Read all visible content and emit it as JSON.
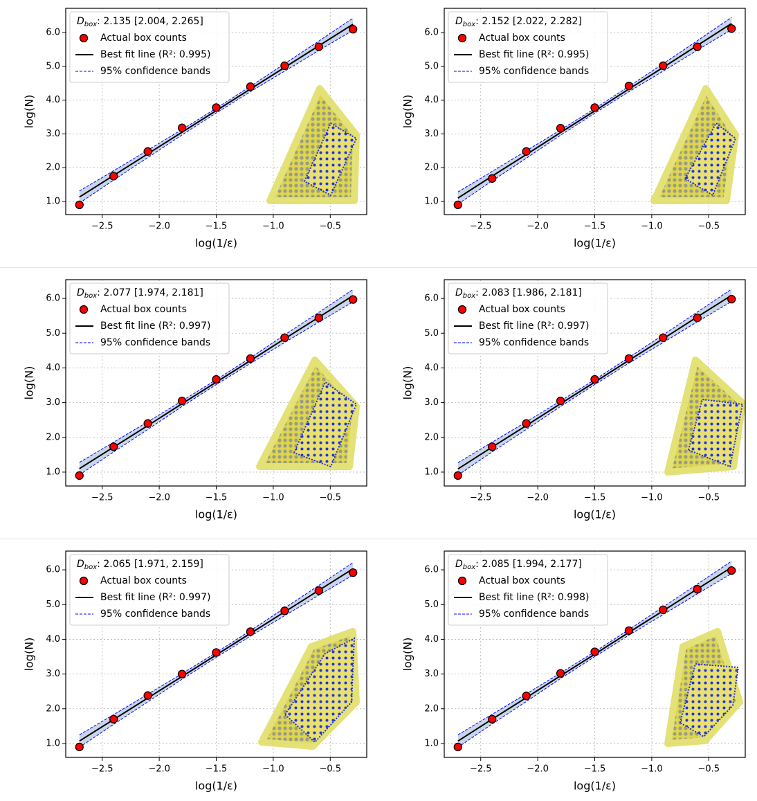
{
  "chart_data": [
    {
      "type": "scatter",
      "x": [
        -2.7,
        -2.4,
        -2.1,
        -1.8,
        -1.5,
        -1.2,
        -0.9,
        -0.6,
        -0.3
      ],
      "annotation": {
        "symbol": "D",
        "subscript": "box",
        "text": ": 2.135 [2.004, 2.265]"
      },
      "series": [
        {
          "name": "Actual box counts",
          "color": "#ff0000",
          "values": [
            0.9,
            1.75,
            2.48,
            3.18,
            3.78,
            4.4,
            5.02,
            5.58,
            6.1
          ]
        },
        {
          "name": "Best fit line (R²: 0.995)",
          "color": "#000000",
          "values": [
            1.13,
            1.77,
            2.41,
            3.05,
            3.69,
            4.33,
            4.97,
            5.61,
            6.25
          ]
        },
        {
          "name": "95% confidence bands",
          "color": "#0000ff",
          "upper": [
            1.31,
            1.91,
            2.52,
            3.13,
            3.76,
            4.41,
            5.08,
            5.75,
            6.43
          ],
          "lower": [
            0.95,
            1.63,
            2.3,
            2.97,
            3.62,
            4.25,
            4.86,
            5.47,
            6.07
          ]
        }
      ],
      "xlabel": "log(1/ε)",
      "ylabel": "log(N)",
      "xlim": [
        -2.82,
        -0.18
      ],
      "ylim": [
        0.61,
        6.72
      ],
      "xticks": [
        {
          "value": -2.5,
          "label": "−2.5"
        },
        {
          "value": -2.0,
          "label": "−2.0"
        },
        {
          "value": -1.5,
          "label": "−1.5"
        },
        {
          "value": -1.0,
          "label": "−1.0"
        },
        {
          "value": -0.5,
          "label": "−0.5"
        }
      ],
      "yticks": [
        {
          "value": 1,
          "label": "1.0"
        },
        {
          "value": 2,
          "label": "2.0"
        },
        {
          "value": 3,
          "label": "3.0"
        },
        {
          "value": 4,
          "label": "4.0"
        },
        {
          "value": 5,
          "label": "5.0"
        },
        {
          "value": 6,
          "label": "6.0"
        }
      ],
      "grid": true,
      "legend": "upper left"
    },
    {
      "type": "scatter",
      "x": [
        -2.7,
        -2.4,
        -2.1,
        -1.8,
        -1.5,
        -1.2,
        -0.9,
        -0.6,
        -0.3
      ],
      "annotation": {
        "symbol": "D",
        "subscript": "box",
        "text": ": 2.152 [2.022, 2.282]"
      },
      "series": [
        {
          "name": "Actual box counts",
          "color": "#ff0000",
          "values": [
            0.9,
            1.68,
            2.48,
            3.17,
            3.78,
            4.42,
            5.02,
            5.58,
            6.12
          ]
        },
        {
          "name": "Best fit line (R²: 0.995)",
          "color": "#000000",
          "values": [
            1.1,
            1.75,
            2.39,
            3.04,
            3.68,
            4.33,
            4.97,
            5.62,
            6.27
          ]
        },
        {
          "name": "95% confidence bands",
          "color": "#0000ff",
          "upper": [
            1.28,
            1.89,
            2.5,
            3.12,
            3.75,
            4.41,
            5.08,
            5.76,
            6.45
          ],
          "lower": [
            0.92,
            1.61,
            2.28,
            2.96,
            3.61,
            4.25,
            4.86,
            5.48,
            6.09
          ]
        }
      ],
      "xlabel": "log(1/ε)",
      "ylabel": "log(N)",
      "xlim": [
        -2.82,
        -0.18
      ],
      "ylim": [
        0.61,
        6.72
      ],
      "xticks": [
        {
          "value": -2.5,
          "label": "−2.5"
        },
        {
          "value": -2.0,
          "label": "−2.0"
        },
        {
          "value": -1.5,
          "label": "−1.5"
        },
        {
          "value": -1.0,
          "label": "−1.0"
        },
        {
          "value": -0.5,
          "label": "−0.5"
        }
      ],
      "yticks": [
        {
          "value": 1,
          "label": "1.0"
        },
        {
          "value": 2,
          "label": "2.0"
        },
        {
          "value": 3,
          "label": "3.0"
        },
        {
          "value": 4,
          "label": "4.0"
        },
        {
          "value": 5,
          "label": "5.0"
        },
        {
          "value": 6,
          "label": "6.0"
        }
      ],
      "grid": true,
      "legend": "upper left"
    },
    {
      "type": "scatter",
      "x": [
        -2.7,
        -2.4,
        -2.1,
        -1.8,
        -1.5,
        -1.2,
        -0.9,
        -0.6,
        -0.3
      ],
      "annotation": {
        "symbol": "D",
        "subscript": "box",
        "text": ": 2.077 [1.974, 2.181]"
      },
      "series": [
        {
          "name": "Actual box counts",
          "color": "#ff0000",
          "values": [
            0.9,
            1.73,
            2.4,
            3.05,
            3.67,
            4.27,
            4.87,
            5.44,
            5.97
          ]
        },
        {
          "name": "Best fit line (R²: 0.997)",
          "color": "#000000",
          "values": [
            1.1,
            1.72,
            2.34,
            2.97,
            3.59,
            4.21,
            4.84,
            5.46,
            6.08
          ]
        },
        {
          "name": "95% confidence bands",
          "color": "#0000ff",
          "upper": [
            1.28,
            1.86,
            2.45,
            3.05,
            3.66,
            4.29,
            4.95,
            5.6,
            6.26
          ],
          "lower": [
            0.92,
            1.58,
            2.23,
            2.89,
            3.52,
            4.13,
            4.73,
            5.32,
            5.9
          ]
        }
      ],
      "xlabel": "log(1/ε)",
      "ylabel": "log(N)",
      "xlim": [
        -2.82,
        -0.18
      ],
      "ylim": [
        0.6,
        6.54
      ],
      "xticks": [
        {
          "value": -2.5,
          "label": "−2.5"
        },
        {
          "value": -2.0,
          "label": "−2.0"
        },
        {
          "value": -1.5,
          "label": "−1.5"
        },
        {
          "value": -1.0,
          "label": "−1.0"
        },
        {
          "value": -0.5,
          "label": "−0.5"
        }
      ],
      "yticks": [
        {
          "value": 1,
          "label": "1.0"
        },
        {
          "value": 2,
          "label": "2.0"
        },
        {
          "value": 3,
          "label": "3.0"
        },
        {
          "value": 4,
          "label": "4.0"
        },
        {
          "value": 5,
          "label": "5.0"
        },
        {
          "value": 6,
          "label": "6.0"
        }
      ],
      "grid": true,
      "legend": "upper left"
    },
    {
      "type": "scatter",
      "x": [
        -2.7,
        -2.4,
        -2.1,
        -1.8,
        -1.5,
        -1.2,
        -0.9,
        -0.6,
        -0.3
      ],
      "annotation": {
        "symbol": "D",
        "subscript": "box",
        "text": ": 2.083 [1.986, 2.181]"
      },
      "series": [
        {
          "name": "Actual box counts",
          "color": "#ff0000",
          "values": [
            0.9,
            1.73,
            2.4,
            3.05,
            3.67,
            4.27,
            4.87,
            5.44,
            5.98
          ]
        },
        {
          "name": "Best fit line (R²: 0.997)",
          "color": "#000000",
          "values": [
            1.09,
            1.72,
            2.34,
            2.97,
            3.59,
            4.22,
            4.84,
            5.47,
            6.09
          ]
        },
        {
          "name": "95% confidence bands",
          "color": "#0000ff",
          "upper": [
            1.27,
            1.86,
            2.45,
            3.05,
            3.66,
            4.3,
            4.95,
            5.61,
            6.27
          ],
          "lower": [
            0.91,
            1.58,
            2.23,
            2.89,
            3.52,
            4.14,
            4.73,
            5.33,
            5.91
          ]
        }
      ],
      "xlabel": "log(1/ε)",
      "ylabel": "log(N)",
      "xlim": [
        -2.82,
        -0.18
      ],
      "ylim": [
        0.6,
        6.54
      ],
      "xticks": [
        {
          "value": -2.5,
          "label": "−2.5"
        },
        {
          "value": -2.0,
          "label": "−2.0"
        },
        {
          "value": -1.5,
          "label": "−1.5"
        },
        {
          "value": -1.0,
          "label": "−1.0"
        },
        {
          "value": -0.5,
          "label": "−0.5"
        }
      ],
      "yticks": [
        {
          "value": 1,
          "label": "1.0"
        },
        {
          "value": 2,
          "label": "2.0"
        },
        {
          "value": 3,
          "label": "3.0"
        },
        {
          "value": 4,
          "label": "4.0"
        },
        {
          "value": 5,
          "label": "5.0"
        },
        {
          "value": 6,
          "label": "6.0"
        }
      ],
      "grid": true,
      "legend": "upper left"
    },
    {
      "type": "scatter",
      "x": [
        -2.7,
        -2.4,
        -2.1,
        -1.8,
        -1.5,
        -1.2,
        -0.9,
        -0.6,
        -0.3
      ],
      "annotation": {
        "symbol": "D",
        "subscript": "box",
        "text": ": 2.065 [1.971, 2.159]"
      },
      "series": [
        {
          "name": "Actual box counts",
          "color": "#ff0000",
          "values": [
            0.9,
            1.7,
            2.38,
            3.0,
            3.62,
            4.22,
            4.82,
            5.4,
            5.92
          ]
        },
        {
          "name": "Best fit line (R²: 0.997)",
          "color": "#000000",
          "values": [
            1.07,
            1.69,
            2.31,
            2.93,
            3.55,
            4.17,
            4.79,
            5.41,
            6.03
          ]
        },
        {
          "name": "95% confidence bands",
          "color": "#0000ff",
          "upper": [
            1.25,
            1.83,
            2.42,
            3.01,
            3.62,
            4.25,
            4.9,
            5.55,
            6.21
          ],
          "lower": [
            0.89,
            1.55,
            2.2,
            2.85,
            3.48,
            4.09,
            4.68,
            5.27,
            5.85
          ]
        }
      ],
      "xlabel": "log(1/ε)",
      "ylabel": "log(N)",
      "xlim": [
        -2.82,
        -0.18
      ],
      "ylim": [
        0.6,
        6.54
      ],
      "xticks": [
        {
          "value": -2.5,
          "label": "−2.5"
        },
        {
          "value": -2.0,
          "label": "−2.0"
        },
        {
          "value": -1.5,
          "label": "−1.5"
        },
        {
          "value": -1.0,
          "label": "−1.0"
        },
        {
          "value": -0.5,
          "label": "−0.5"
        }
      ],
      "yticks": [
        {
          "value": 1,
          "label": "1.0"
        },
        {
          "value": 2,
          "label": "2.0"
        },
        {
          "value": 3,
          "label": "3.0"
        },
        {
          "value": 4,
          "label": "4.0"
        },
        {
          "value": 5,
          "label": "5.0"
        },
        {
          "value": 6,
          "label": "6.0"
        }
      ],
      "grid": true,
      "legend": "upper left"
    },
    {
      "type": "scatter",
      "x": [
        -2.7,
        -2.4,
        -2.1,
        -1.8,
        -1.5,
        -1.2,
        -0.9,
        -0.6,
        -0.3
      ],
      "annotation": {
        "symbol": "D",
        "subscript": "box",
        "text": ": 2.085 [1.994, 2.177]"
      },
      "series": [
        {
          "name": "Actual box counts",
          "color": "#ff0000",
          "values": [
            0.9,
            1.7,
            2.37,
            3.02,
            3.64,
            4.25,
            4.85,
            5.44,
            5.98
          ]
        },
        {
          "name": "Best fit line (R²: 0.998)",
          "color": "#000000",
          "values": [
            1.07,
            1.7,
            2.32,
            2.95,
            3.57,
            4.2,
            4.82,
            5.45,
            6.07
          ]
        },
        {
          "name": "95% confidence bands",
          "color": "#0000ff",
          "upper": [
            1.25,
            1.84,
            2.43,
            3.03,
            3.64,
            4.28,
            4.93,
            5.59,
            6.25
          ],
          "lower": [
            0.89,
            1.56,
            2.21,
            2.87,
            3.5,
            4.12,
            4.71,
            5.31,
            5.89
          ]
        }
      ],
      "xlabel": "log(1/ε)",
      "ylabel": "log(N)",
      "xlim": [
        -2.82,
        -0.18
      ],
      "ylim": [
        0.6,
        6.54
      ],
      "xticks": [
        {
          "value": -2.5,
          "label": "−2.5"
        },
        {
          "value": -2.0,
          "label": "−2.0"
        },
        {
          "value": -1.5,
          "label": "−1.5"
        },
        {
          "value": -1.0,
          "label": "−1.0"
        },
        {
          "value": -0.5,
          "label": "−0.5"
        }
      ],
      "yticks": [
        {
          "value": 1,
          "label": "1.0"
        },
        {
          "value": 2,
          "label": "2.0"
        },
        {
          "value": 3,
          "label": "3.0"
        },
        {
          "value": 4,
          "label": "4.0"
        },
        {
          "value": 5,
          "label": "5.0"
        },
        {
          "value": 6,
          "label": "6.0"
        }
      ],
      "grid": true,
      "legend": "upper left"
    }
  ]
}
